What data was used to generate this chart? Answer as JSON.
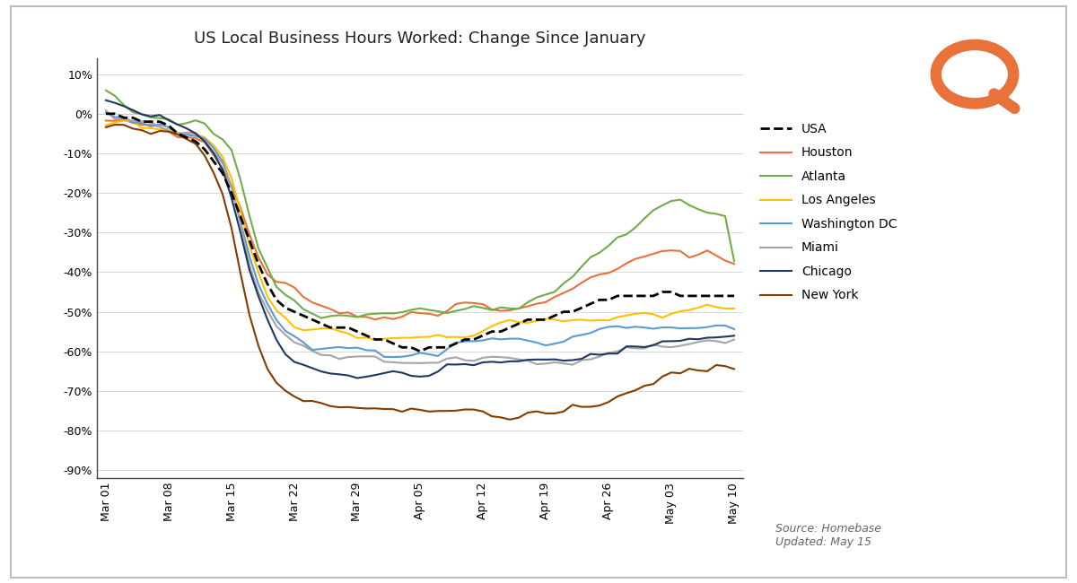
{
  "title": "US Local Business Hours Worked: Change Since January",
  "source_text": "Source: Homebase\nUpdated: May 15",
  "x_labels": [
    "Mar 01",
    "Mar 08",
    "Mar 15",
    "Mar 22",
    "Mar 29",
    "Apr 05",
    "Apr 12",
    "Apr 19",
    "Apr 26",
    "May 03",
    "May 10"
  ],
  "x_tick_positions": [
    0,
    7,
    14,
    21,
    28,
    35,
    42,
    49,
    56,
    63,
    70
  ],
  "ylim": [
    -0.92,
    0.14
  ],
  "yticks": [
    0.1,
    0.0,
    -0.1,
    -0.2,
    -0.3,
    -0.4,
    -0.5,
    -0.6,
    -0.7,
    -0.8,
    -0.9
  ],
  "series": {
    "USA": {
      "color": "#000000",
      "linewidth": 2.0,
      "linestyle": "--",
      "data_y": [
        0.0,
        0.0,
        -0.01,
        -0.01,
        -0.02,
        -0.02,
        -0.02,
        -0.03,
        -0.05,
        -0.06,
        -0.07,
        -0.09,
        -0.12,
        -0.15,
        -0.2,
        -0.26,
        -0.32,
        -0.38,
        -0.43,
        -0.47,
        -0.49,
        -0.5,
        -0.51,
        -0.52,
        -0.53,
        -0.54,
        -0.54,
        -0.54,
        -0.55,
        -0.56,
        -0.57,
        -0.57,
        -0.58,
        -0.59,
        -0.59,
        -0.6,
        -0.59,
        -0.59,
        -0.59,
        -0.58,
        -0.57,
        -0.57,
        -0.56,
        -0.55,
        -0.55,
        -0.54,
        -0.53,
        -0.52,
        -0.52,
        -0.52,
        -0.51,
        -0.5,
        -0.5,
        -0.49,
        -0.48,
        -0.47,
        -0.47,
        -0.46,
        -0.46,
        -0.46,
        -0.46,
        -0.46,
        -0.45,
        -0.45,
        -0.46,
        -0.46,
        -0.46,
        -0.46,
        -0.46,
        -0.46,
        -0.46
      ]
    },
    "Houston": {
      "color": "#E8723A",
      "linewidth": 1.5,
      "linestyle": "-",
      "data_y": [
        -0.02,
        -0.02,
        -0.02,
        -0.03,
        -0.03,
        -0.03,
        -0.04,
        -0.05,
        -0.06,
        -0.06,
        -0.06,
        -0.07,
        -0.1,
        -0.13,
        -0.17,
        -0.23,
        -0.3,
        -0.36,
        -0.4,
        -0.42,
        -0.43,
        -0.44,
        -0.46,
        -0.47,
        -0.48,
        -0.49,
        -0.5,
        -0.5,
        -0.51,
        -0.51,
        -0.52,
        -0.52,
        -0.52,
        -0.51,
        -0.5,
        -0.5,
        -0.5,
        -0.5,
        -0.49,
        -0.48,
        -0.48,
        -0.48,
        -0.48,
        -0.49,
        -0.49,
        -0.49,
        -0.49,
        -0.49,
        -0.48,
        -0.47,
        -0.46,
        -0.45,
        -0.44,
        -0.43,
        -0.42,
        -0.41,
        -0.4,
        -0.39,
        -0.38,
        -0.37,
        -0.36,
        -0.35,
        -0.34,
        -0.34,
        -0.35,
        -0.37,
        -0.36,
        -0.35,
        -0.36,
        -0.37,
        -0.38
      ]
    },
    "Atlanta": {
      "color": "#70AD47",
      "linewidth": 1.5,
      "linestyle": "-",
      "data_y": [
        0.05,
        0.04,
        0.02,
        0.01,
        0.0,
        -0.01,
        -0.01,
        -0.01,
        -0.02,
        -0.02,
        -0.02,
        -0.03,
        -0.05,
        -0.06,
        -0.09,
        -0.17,
        -0.26,
        -0.34,
        -0.39,
        -0.44,
        -0.46,
        -0.47,
        -0.49,
        -0.5,
        -0.51,
        -0.51,
        -0.51,
        -0.51,
        -0.51,
        -0.5,
        -0.5,
        -0.5,
        -0.5,
        -0.5,
        -0.5,
        -0.5,
        -0.5,
        -0.5,
        -0.5,
        -0.49,
        -0.49,
        -0.49,
        -0.5,
        -0.5,
        -0.49,
        -0.49,
        -0.49,
        -0.48,
        -0.47,
        -0.46,
        -0.45,
        -0.43,
        -0.41,
        -0.39,
        -0.37,
        -0.35,
        -0.33,
        -0.31,
        -0.3,
        -0.28,
        -0.26,
        -0.24,
        -0.23,
        -0.22,
        -0.22,
        -0.23,
        -0.24,
        -0.25,
        -0.25,
        -0.26,
        -0.38
      ]
    },
    "Los Angeles": {
      "color": "#FFC000",
      "linewidth": 1.5,
      "linestyle": "-",
      "data_y": [
        -0.02,
        -0.02,
        -0.02,
        -0.02,
        -0.03,
        -0.03,
        -0.04,
        -0.04,
        -0.05,
        -0.05,
        -0.05,
        -0.06,
        -0.08,
        -0.11,
        -0.17,
        -0.25,
        -0.33,
        -0.4,
        -0.46,
        -0.5,
        -0.52,
        -0.54,
        -0.55,
        -0.55,
        -0.55,
        -0.55,
        -0.55,
        -0.55,
        -0.56,
        -0.56,
        -0.57,
        -0.57,
        -0.57,
        -0.57,
        -0.57,
        -0.57,
        -0.57,
        -0.57,
        -0.57,
        -0.56,
        -0.56,
        -0.56,
        -0.55,
        -0.54,
        -0.53,
        -0.52,
        -0.52,
        -0.52,
        -0.52,
        -0.52,
        -0.52,
        -0.52,
        -0.52,
        -0.52,
        -0.52,
        -0.52,
        -0.52,
        -0.51,
        -0.51,
        -0.51,
        -0.51,
        -0.51,
        -0.51,
        -0.5,
        -0.5,
        -0.5,
        -0.5,
        -0.5,
        -0.5,
        -0.5,
        -0.5
      ]
    },
    "Washington DC": {
      "color": "#5B9BD5",
      "linewidth": 1.5,
      "linestyle": "-",
      "data_y": [
        0.0,
        -0.01,
        -0.01,
        -0.02,
        -0.02,
        -0.03,
        -0.03,
        -0.04,
        -0.05,
        -0.05,
        -0.05,
        -0.06,
        -0.09,
        -0.12,
        -0.18,
        -0.27,
        -0.36,
        -0.43,
        -0.48,
        -0.52,
        -0.55,
        -0.57,
        -0.58,
        -0.59,
        -0.59,
        -0.59,
        -0.59,
        -0.59,
        -0.59,
        -0.6,
        -0.6,
        -0.61,
        -0.61,
        -0.61,
        -0.61,
        -0.61,
        -0.61,
        -0.61,
        -0.6,
        -0.59,
        -0.58,
        -0.57,
        -0.57,
        -0.57,
        -0.57,
        -0.57,
        -0.57,
        -0.57,
        -0.57,
        -0.57,
        -0.57,
        -0.57,
        -0.56,
        -0.56,
        -0.55,
        -0.54,
        -0.54,
        -0.54,
        -0.54,
        -0.54,
        -0.54,
        -0.54,
        -0.54,
        -0.54,
        -0.54,
        -0.54,
        -0.54,
        -0.54,
        -0.54,
        -0.54,
        -0.54
      ]
    },
    "Miami": {
      "color": "#A5A5A5",
      "linewidth": 1.5,
      "linestyle": "-",
      "data_y": [
        0.0,
        -0.01,
        -0.01,
        -0.02,
        -0.02,
        -0.02,
        -0.03,
        -0.04,
        -0.05,
        -0.05,
        -0.05,
        -0.07,
        -0.1,
        -0.13,
        -0.19,
        -0.28,
        -0.38,
        -0.45,
        -0.5,
        -0.54,
        -0.56,
        -0.58,
        -0.59,
        -0.6,
        -0.61,
        -0.61,
        -0.62,
        -0.62,
        -0.62,
        -0.62,
        -0.62,
        -0.63,
        -0.63,
        -0.63,
        -0.63,
        -0.63,
        -0.63,
        -0.63,
        -0.62,
        -0.62,
        -0.62,
        -0.62,
        -0.62,
        -0.62,
        -0.62,
        -0.62,
        -0.62,
        -0.62,
        -0.63,
        -0.63,
        -0.63,
        -0.63,
        -0.63,
        -0.62,
        -0.62,
        -0.61,
        -0.6,
        -0.6,
        -0.59,
        -0.59,
        -0.59,
        -0.58,
        -0.58,
        -0.58,
        -0.58,
        -0.58,
        -0.58,
        -0.58,
        -0.58,
        -0.58,
        -0.57
      ]
    },
    "Chicago": {
      "color": "#203864",
      "linewidth": 1.5,
      "linestyle": "-",
      "data_y": [
        0.04,
        0.03,
        0.02,
        0.01,
        0.0,
        -0.01,
        -0.01,
        -0.02,
        -0.03,
        -0.04,
        -0.05,
        -0.07,
        -0.1,
        -0.14,
        -0.21,
        -0.3,
        -0.4,
        -0.47,
        -0.53,
        -0.58,
        -0.61,
        -0.63,
        -0.64,
        -0.65,
        -0.65,
        -0.65,
        -0.65,
        -0.65,
        -0.66,
        -0.66,
        -0.66,
        -0.66,
        -0.66,
        -0.66,
        -0.66,
        -0.66,
        -0.66,
        -0.65,
        -0.64,
        -0.64,
        -0.63,
        -0.63,
        -0.63,
        -0.63,
        -0.63,
        -0.62,
        -0.62,
        -0.62,
        -0.62,
        -0.62,
        -0.62,
        -0.62,
        -0.62,
        -0.62,
        -0.61,
        -0.61,
        -0.6,
        -0.6,
        -0.59,
        -0.59,
        -0.59,
        -0.59,
        -0.58,
        -0.58,
        -0.58,
        -0.58,
        -0.58,
        -0.57,
        -0.57,
        -0.57,
        -0.57
      ]
    },
    "New York": {
      "color": "#833C00",
      "linewidth": 1.5,
      "linestyle": "-",
      "data_y": [
        -0.03,
        -0.03,
        -0.03,
        -0.03,
        -0.03,
        -0.04,
        -0.04,
        -0.05,
        -0.06,
        -0.07,
        -0.08,
        -0.1,
        -0.14,
        -0.2,
        -0.29,
        -0.4,
        -0.5,
        -0.58,
        -0.64,
        -0.68,
        -0.7,
        -0.71,
        -0.72,
        -0.72,
        -0.73,
        -0.74,
        -0.74,
        -0.74,
        -0.74,
        -0.74,
        -0.74,
        -0.74,
        -0.74,
        -0.75,
        -0.75,
        -0.75,
        -0.75,
        -0.75,
        -0.75,
        -0.75,
        -0.75,
        -0.75,
        -0.75,
        -0.76,
        -0.76,
        -0.76,
        -0.76,
        -0.76,
        -0.76,
        -0.76,
        -0.76,
        -0.76,
        -0.75,
        -0.75,
        -0.74,
        -0.73,
        -0.72,
        -0.71,
        -0.7,
        -0.69,
        -0.68,
        -0.68,
        -0.67,
        -0.66,
        -0.66,
        -0.65,
        -0.65,
        -0.65,
        -0.64,
        -0.64,
        -0.64
      ]
    }
  },
  "legend_order": [
    "USA",
    "Houston",
    "Atlanta",
    "Los Angeles",
    "Washington DC",
    "Miami",
    "Chicago",
    "New York"
  ],
  "background_color": "#FFFFFF",
  "grid_color": "#CCCCCC",
  "logo_color": "#E8723A",
  "border_color": "#BBBBBB"
}
